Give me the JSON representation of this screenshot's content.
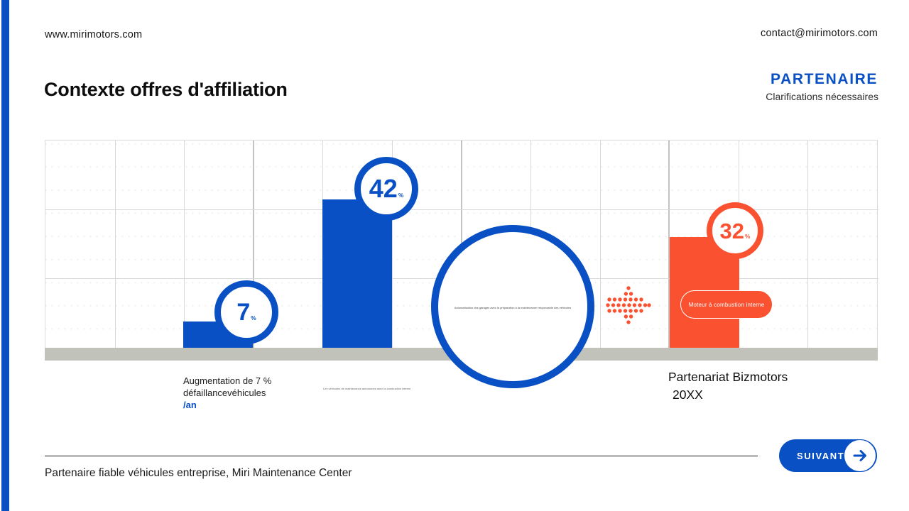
{
  "accent": {
    "blue": "#0950c4",
    "orange": "#fa5130",
    "baseline_gray": "#c1c3bb"
  },
  "header": {
    "website": "www.mirimotors.com",
    "email": "contact@mirimotors.com",
    "title": "Contexte offres d'affiliation",
    "badge_title": "PARTENAIRE",
    "badge_subtitle": "Clarifications nécessaires"
  },
  "chart_data": {
    "type": "bar",
    "unit": "%",
    "title": "",
    "xlabel": "",
    "ylabel": "",
    "grid": {
      "columns": 12,
      "rows": 3,
      "major_columns": [
        3,
        6,
        9
      ],
      "gridlines_on": true
    },
    "bars": [
      {
        "number": "7",
        "percent_sign": "%",
        "value": 7,
        "color": "#0950c4"
      },
      {
        "number": "42",
        "percent_sign": "%",
        "value": 42,
        "color": "#0950c4"
      },
      {
        "number": "32",
        "percent_sign": "%",
        "value": 32,
        "color": "#fa5130",
        "tag": "Moteur à combustion interne"
      }
    ],
    "caption_left": {
      "line1": "Augmentation de 7 %",
      "line2": "défaillancevéhicules",
      "accent": "/an"
    },
    "caption_right": {
      "line1": "Partenariat Bizmotors",
      "line2": "20XX"
    },
    "fineprint_circle": "Automatisation des garages avec la préparation à la maintenance responsable des véhicules",
    "fineprint_bar": "Les véhicules de maintenance autonomes avec la combustion interne"
  },
  "footer": {
    "note": "Partenaire fiable véhicules entreprise, Miri Maintenance Center",
    "next_label": "SUIVANT"
  }
}
